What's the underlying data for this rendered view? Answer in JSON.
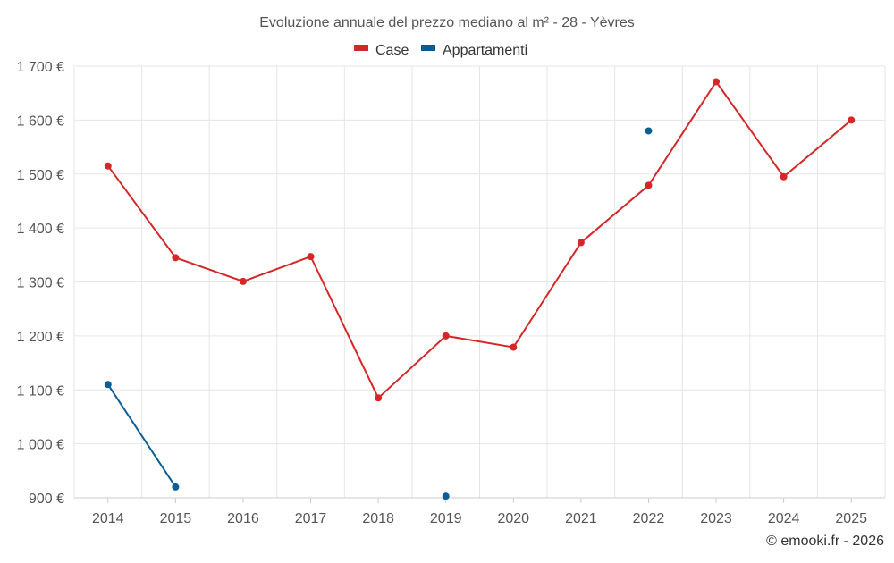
{
  "chart_data": {
    "type": "line",
    "title": "Evoluzione annuale del prezzo mediano al m² - 28 - Yèvres",
    "xlabel": "",
    "ylabel": "",
    "categories": [
      "2014",
      "2015",
      "2016",
      "2017",
      "2018",
      "2019",
      "2020",
      "2021",
      "2022",
      "2023",
      "2024",
      "2025"
    ],
    "ylim": [
      900,
      1700
    ],
    "yticks": [
      900,
      1000,
      1100,
      1200,
      1300,
      1400,
      1500,
      1600,
      1700
    ],
    "ytick_labels": [
      "900 €",
      "1 000 €",
      "1 100 €",
      "1 200 €",
      "1 300 €",
      "1 400 €",
      "1 500 €",
      "1 600 €",
      "1 700 €"
    ],
    "grid": true,
    "legend_position": "top-center",
    "series": [
      {
        "name": "Case",
        "color": "#d62728",
        "values": [
          1515,
          1345,
          1301,
          1347,
          1085,
          1200,
          1179,
          1373,
          1479,
          1671,
          1495,
          1600
        ]
      },
      {
        "name": "Appartamenti",
        "color": "#0a5e93",
        "values": [
          1110,
          920,
          null,
          null,
          null,
          903,
          null,
          null,
          1580,
          null,
          null,
          null
        ]
      }
    ]
  },
  "credit": "© emooki.fr - 2026"
}
